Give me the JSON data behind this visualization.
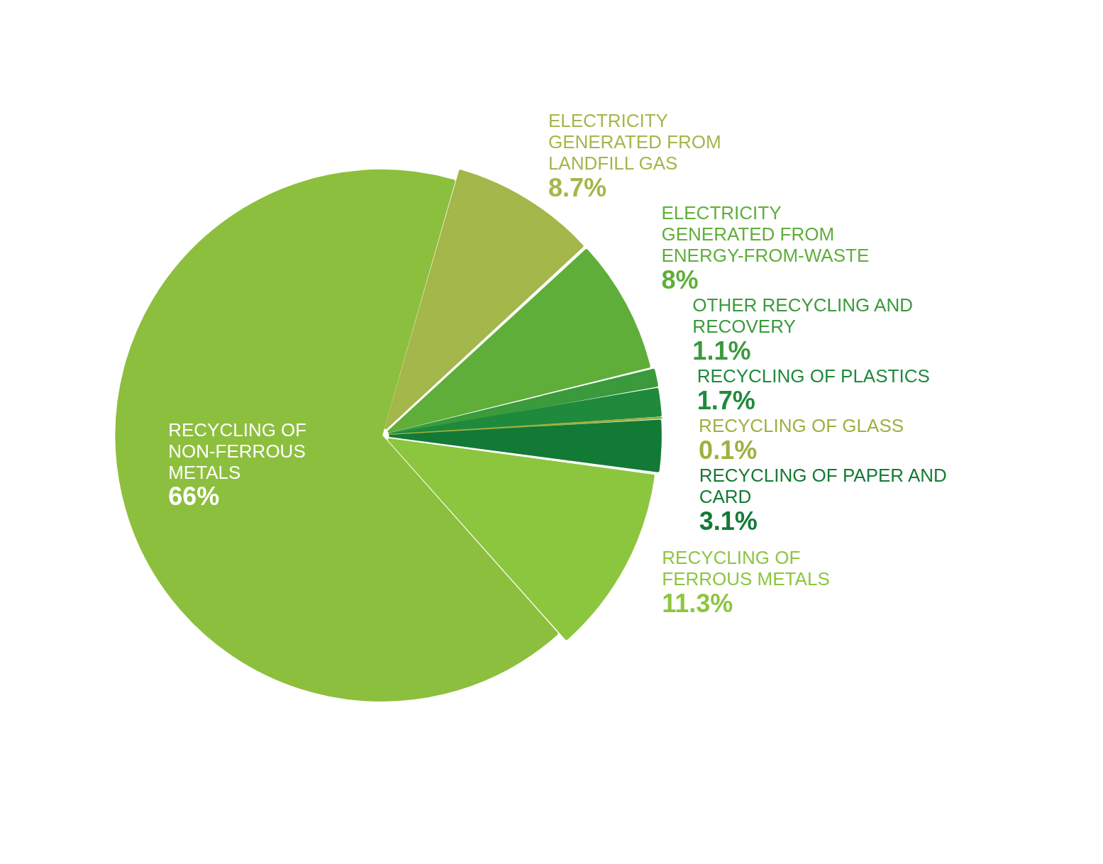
{
  "chart_data": {
    "type": "pie",
    "categories": [
      "ELECTRICITY GENERATED FROM LANDFILL GAS",
      "ELECTRICITY GENERATED FROM ENERGY-FROM-WASTE",
      "OTHER RECYCLING AND RECOVERY",
      "RECYCLING OF PLASTICS",
      "RECYCLING OF GLASS",
      "RECYCLING OF PAPER AND CARD",
      "RECYCLING OF FERROUS METALS",
      "RECYCLING OF NON-FERROUS METALS"
    ],
    "values": [
      8.7,
      8,
      1.1,
      1.7,
      0.1,
      3.1,
      11.3,
      66
    ],
    "colors": [
      "#a3b74a",
      "#5fae3a",
      "#3a9a3c",
      "#1f8a3c",
      "#9fb040",
      "#137a35",
      "#8cc63f",
      "#8dbf3e"
    ],
    "value_labels": [
      "8.7%",
      "8%",
      "1.1%",
      "1.7%",
      "0.1%",
      "3.1%",
      "11.3%",
      "66%"
    ]
  }
}
